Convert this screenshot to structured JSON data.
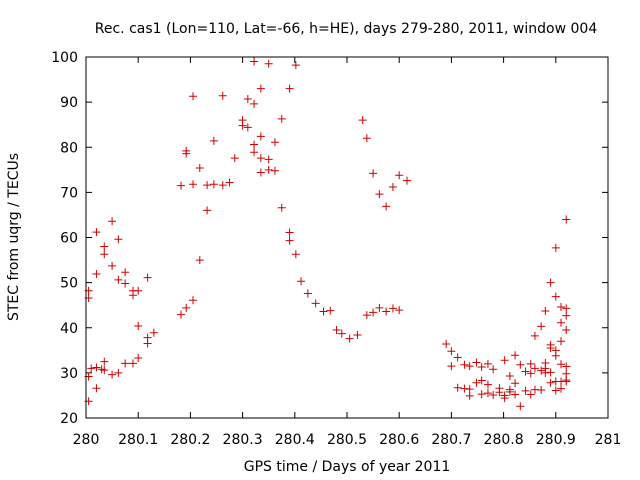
{
  "chart_data": {
    "type": "scatter",
    "title": "Rec. cas1 (Lon=110, Lat=-66, h=HE), days 279-280, 2011, window 004",
    "xlabel": "GPS time / Days of year 2011",
    "ylabel": "STEC from uqrg / TECUs",
    "xlim": [
      280,
      281
    ],
    "ylim": [
      20,
      100
    ],
    "xticks": [
      280,
      280.1,
      280.2,
      280.3,
      280.4,
      280.5,
      280.6,
      280.7,
      280.8,
      280.9,
      281
    ],
    "xtick_labels": [
      "280",
      "280.1",
      "280.2",
      "280.3",
      "280.4",
      "280.5",
      "280.6",
      "280.7",
      "280.8",
      "280.9",
      "281"
    ],
    "yticks": [
      20,
      30,
      40,
      50,
      60,
      70,
      80,
      90,
      100
    ],
    "ytick_labels": [
      "20",
      "30",
      "40",
      "50",
      "60",
      "70",
      "80",
      "90",
      "100"
    ],
    "marker": "plus",
    "color": "#d00000",
    "grid": false,
    "points": [
      [
        280.005,
        48.2
      ],
      [
        280.005,
        46.6
      ],
      [
        280.005,
        29.2
      ],
      [
        280.005,
        23.7
      ],
      [
        280.01,
        31.0
      ],
      [
        280.02,
        61.2
      ],
      [
        280.02,
        51.9
      ],
      [
        280.02,
        31.2
      ],
      [
        280.02,
        26.6
      ],
      [
        280.03,
        30.8
      ],
      [
        280.035,
        58.0
      ],
      [
        280.035,
        56.3
      ],
      [
        280.035,
        32.5
      ],
      [
        280.035,
        30.6
      ],
      [
        280.05,
        63.6
      ],
      [
        280.05,
        53.7
      ],
      [
        280.05,
        29.6
      ],
      [
        280.062,
        59.6
      ],
      [
        280.062,
        50.6
      ],
      [
        280.062,
        30.0
      ],
      [
        280.075,
        52.3
      ],
      [
        280.075,
        49.8
      ],
      [
        280.075,
        32.1
      ],
      [
        280.09,
        48.2
      ],
      [
        280.09,
        47.2
      ],
      [
        280.09,
        32.1
      ],
      [
        280.1,
        48.2
      ],
      [
        280.1,
        40.4
      ],
      [
        280.1,
        33.3
      ],
      [
        280.118,
        51.1
      ],
      [
        280.118,
        37.8
      ],
      [
        280.118,
        36.5
      ],
      [
        280.13,
        38.9
      ],
      [
        280.182,
        71.5
      ],
      [
        280.182,
        42.9
      ],
      [
        280.192,
        79.2
      ],
      [
        280.192,
        78.6
      ],
      [
        280.192,
        44.4
      ],
      [
        280.205,
        91.3
      ],
      [
        280.205,
        71.8
      ],
      [
        280.205,
        46.1
      ],
      [
        280.218,
        75.4
      ],
      [
        280.218,
        55.0
      ],
      [
        280.232,
        66.0
      ],
      [
        280.232,
        71.6
      ],
      [
        280.245,
        81.4
      ],
      [
        280.245,
        71.8
      ],
      [
        280.262,
        91.4
      ],
      [
        280.262,
        71.6
      ],
      [
        280.275,
        72.2
      ],
      [
        280.285,
        77.6
      ],
      [
        280.3,
        86.0
      ],
      [
        280.3,
        84.8
      ],
      [
        280.31,
        90.7
      ],
      [
        280.31,
        84.4
      ],
      [
        280.322,
        99.0
      ],
      [
        280.322,
        89.6
      ],
      [
        280.322,
        80.6
      ],
      [
        280.322,
        78.9
      ],
      [
        280.335,
        93.0
      ],
      [
        280.335,
        82.4
      ],
      [
        280.335,
        77.6
      ],
      [
        280.335,
        74.4
      ],
      [
        280.35,
        98.5
      ],
      [
        280.35,
        77.3
      ],
      [
        280.35,
        75.0
      ],
      [
        280.362,
        81.1
      ],
      [
        280.362,
        74.8
      ],
      [
        280.375,
        86.3
      ],
      [
        280.375,
        66.6
      ],
      [
        280.39,
        93.0
      ],
      [
        280.39,
        61.1
      ],
      [
        280.39,
        59.3
      ],
      [
        280.402,
        98.2
      ],
      [
        280.402,
        56.3
      ],
      [
        280.412,
        50.3
      ],
      [
        280.425,
        47.6
      ],
      [
        280.44,
        45.4
      ],
      [
        280.455,
        43.6
      ],
      [
        280.468,
        43.8
      ],
      [
        280.48,
        39.5
      ],
      [
        280.49,
        38.7
      ],
      [
        280.505,
        37.6
      ],
      [
        280.52,
        38.4
      ],
      [
        280.53,
        86.0
      ],
      [
        280.538,
        82.0
      ],
      [
        280.55,
        74.2
      ],
      [
        280.538,
        42.8
      ],
      [
        280.55,
        43.4
      ],
      [
        280.562,
        69.6
      ],
      [
        280.562,
        44.4
      ],
      [
        280.575,
        66.9
      ],
      [
        280.575,
        43.6
      ],
      [
        280.588,
        71.2
      ],
      [
        280.588,
        44.3
      ],
      [
        280.6,
        73.8
      ],
      [
        280.6,
        43.9
      ],
      [
        280.615,
        72.6
      ],
      [
        280.69,
        36.4
      ],
      [
        280.7,
        34.8
      ],
      [
        280.7,
        31.5
      ],
      [
        280.712,
        33.4
      ],
      [
        280.712,
        26.7
      ],
      [
        280.725,
        31.8
      ],
      [
        280.725,
        26.5
      ],
      [
        280.735,
        31.5
      ],
      [
        280.735,
        26.4
      ],
      [
        280.735,
        24.9
      ],
      [
        280.748,
        32.3
      ],
      [
        280.748,
        27.8
      ],
      [
        280.758,
        31.3
      ],
      [
        280.758,
        28.3
      ],
      [
        280.758,
        25.3
      ],
      [
        280.77,
        32.0
      ],
      [
        280.77,
        27.4
      ],
      [
        280.77,
        25.5
      ],
      [
        280.78,
        30.8
      ],
      [
        280.78,
        25.1
      ],
      [
        280.792,
        26.6
      ],
      [
        280.792,
        25.7
      ],
      [
        280.802,
        32.8
      ],
      [
        280.802,
        25.0
      ],
      [
        280.802,
        24.4
      ],
      [
        280.812,
        29.3
      ],
      [
        280.812,
        26.3
      ],
      [
        280.812,
        25.8
      ],
      [
        280.822,
        33.9
      ],
      [
        280.822,
        27.7
      ],
      [
        280.822,
        25.2
      ],
      [
        280.832,
        31.8
      ],
      [
        280.832,
        22.6
      ],
      [
        280.842,
        30.3
      ],
      [
        280.842,
        26.0
      ],
      [
        280.852,
        32.0
      ],
      [
        280.852,
        29.9
      ],
      [
        280.852,
        25.2
      ],
      [
        280.86,
        38.2
      ],
      [
        280.86,
        31.0
      ],
      [
        280.86,
        26.3
      ],
      [
        280.872,
        40.3
      ],
      [
        280.872,
        30.5
      ],
      [
        280.872,
        26.2
      ],
      [
        280.88,
        43.7
      ],
      [
        280.88,
        31.0
      ],
      [
        280.88,
        32.2
      ],
      [
        280.88,
        30.0
      ],
      [
        280.89,
        50.0
      ],
      [
        280.89,
        36.2
      ],
      [
        280.89,
        35.5
      ],
      [
        280.89,
        30.1
      ],
      [
        280.89,
        27.8
      ],
      [
        280.9,
        57.7
      ],
      [
        280.9,
        46.9
      ],
      [
        280.9,
        35.0
      ],
      [
        280.9,
        33.8
      ],
      [
        280.9,
        28.1
      ],
      [
        280.9,
        26.1
      ],
      [
        280.91,
        44.6
      ],
      [
        280.91,
        41.1
      ],
      [
        280.91,
        37.0
      ],
      [
        280.91,
        31.9
      ],
      [
        280.91,
        28.1
      ],
      [
        280.91,
        26.5
      ],
      [
        280.92,
        64.0
      ],
      [
        280.92,
        44.3
      ],
      [
        280.92,
        42.7
      ],
      [
        280.92,
        39.5
      ],
      [
        280.92,
        31.4
      ],
      [
        280.92,
        29.8
      ],
      [
        280.92,
        28.4
      ],
      [
        280.92,
        28.1
      ]
    ]
  }
}
